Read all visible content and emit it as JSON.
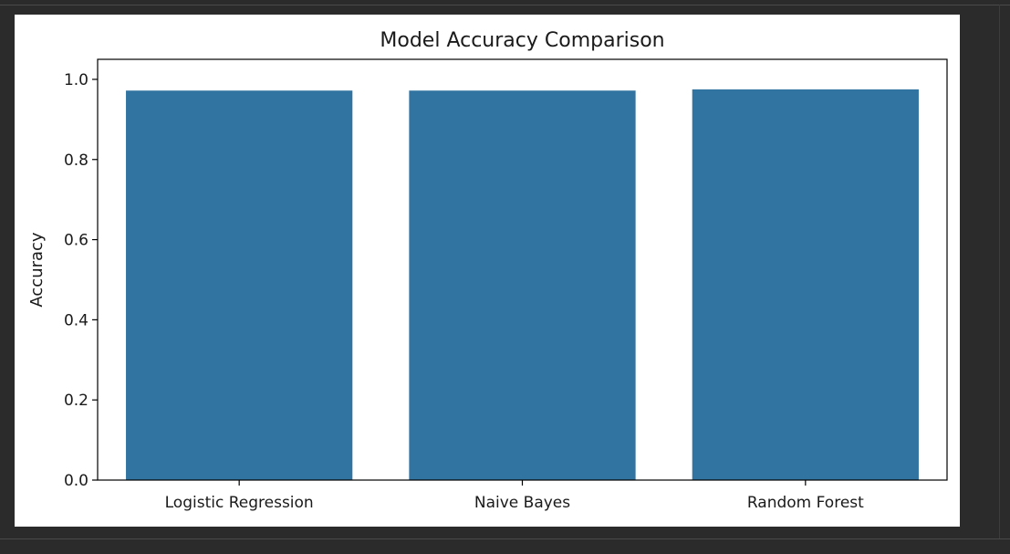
{
  "colors": {
    "bar": "#3274a1",
    "axis": "#000000",
    "background": "#2b2b2b",
    "figure": "#ffffff"
  },
  "chart_data": {
    "type": "bar",
    "title": "Model Accuracy Comparison",
    "xlabel": "",
    "ylabel": "Accuracy",
    "ylim": [
      0,
      1.05
    ],
    "yticks": [
      0.0,
      0.2,
      0.4,
      0.6,
      0.8,
      1.0
    ],
    "ytick_labels": [
      "0.0",
      "0.2",
      "0.4",
      "0.6",
      "0.8",
      "1.0"
    ],
    "categories": [
      "Logistic Regression",
      "Naive Bayes",
      "Random Forest"
    ],
    "values": [
      0.972,
      0.972,
      0.975
    ],
    "grid": false,
    "legend": "none"
  }
}
